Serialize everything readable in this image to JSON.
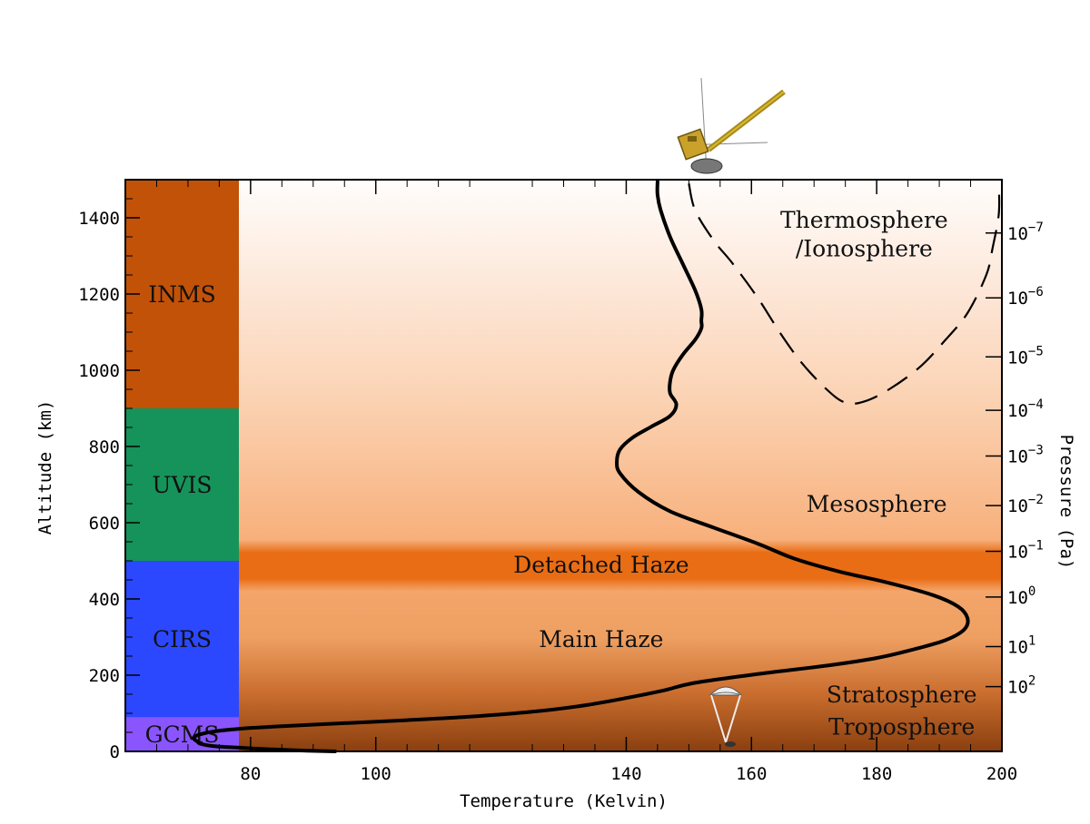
{
  "chart_data": {
    "type": "line",
    "xlabel": "Temperature (Kelvin)",
    "ylabel": "Altitude (km)",
    "y2label": "Pressure (Pa)",
    "xlim": [
      60,
      200
    ],
    "ylim": [
      0,
      1500
    ],
    "xticks": [
      80,
      100,
      140,
      160,
      180,
      200
    ],
    "yticks": [
      0,
      200,
      400,
      600,
      800,
      1000,
      1200,
      1400
    ],
    "pressure_ticks": [
      {
        "label": "10",
        "exp": "−7",
        "altitude": 1360
      },
      {
        "label": "10",
        "exp": "−6",
        "altitude": 1190
      },
      {
        "label": "10",
        "exp": "−5",
        "altitude": 1035
      },
      {
        "label": "10",
        "exp": "−4",
        "altitude": 895
      },
      {
        "label": "10",
        "exp": "−3",
        "altitude": 775
      },
      {
        "label": "10",
        "exp": "−2",
        "altitude": 645
      },
      {
        "label": "10",
        "exp": "−1",
        "altitude": 525
      },
      {
        "label": "10",
        "exp": "0",
        "altitude": 405
      },
      {
        "label": "10",
        "exp": "1",
        "altitude": 275
      },
      {
        "label": "10",
        "exp": "2",
        "altitude": 170
      }
    ],
    "instruments": [
      {
        "name": "GCMS",
        "from": 0,
        "to": 90,
        "color": "#8a55ff"
      },
      {
        "name": "CIRS",
        "from": 90,
        "to": 500,
        "color": "#2b48ff"
      },
      {
        "name": "UVIS",
        "from": 500,
        "to": 900,
        "color": "#16935a"
      },
      {
        "name": "INMS",
        "from": 900,
        "to": 1500,
        "color": "#c25208"
      }
    ],
    "regions": [
      {
        "name": "Thermosphere",
        "temperature": 178,
        "altitude": 1395
      },
      {
        "name": "/Ionosphere",
        "temperature": 178,
        "altitude": 1320
      },
      {
        "name": "Mesosphere",
        "temperature": 180,
        "altitude": 650
      },
      {
        "name": "Detached Haze",
        "temperature": 136,
        "altitude": 490
      },
      {
        "name": "Main Haze",
        "temperature": 136,
        "altitude": 295
      },
      {
        "name": "Stratosphere",
        "temperature": 184,
        "altitude": 150
      },
      {
        "name": "Troposphere",
        "temperature": 184,
        "altitude": 65
      }
    ],
    "series": [
      {
        "style": "solid",
        "points": [
          [
            93.5,
            0
          ],
          [
            89,
            2
          ],
          [
            84,
            5
          ],
          [
            79,
            9
          ],
          [
            74,
            14
          ],
          [
            72,
            20
          ],
          [
            71.5,
            26
          ],
          [
            71,
            32
          ],
          [
            71,
            38
          ],
          [
            72,
            45
          ],
          [
            74,
            52
          ],
          [
            78,
            59
          ],
          [
            85,
            66
          ],
          [
            95,
            74
          ],
          [
            105,
            82
          ],
          [
            115,
            91
          ],
          [
            125,
            104
          ],
          [
            133,
            120
          ],
          [
            140,
            140
          ],
          [
            146,
            160
          ],
          [
            151,
            180
          ],
          [
            162,
            205
          ],
          [
            172,
            225
          ],
          [
            180,
            245
          ],
          [
            186,
            268
          ],
          [
            191,
            292
          ],
          [
            194,
            320
          ],
          [
            194.5,
            350
          ],
          [
            193,
            380
          ],
          [
            189,
            410
          ],
          [
            182,
            442
          ],
          [
            174,
            472
          ],
          [
            167,
            505
          ],
          [
            161,
            545
          ],
          [
            154,
            587
          ],
          [
            147,
            630
          ],
          [
            142,
            680
          ],
          [
            139,
            730
          ],
          [
            138.5,
            760
          ],
          [
            139,
            792
          ],
          [
            141,
            823
          ],
          [
            144,
            852
          ],
          [
            147,
            880
          ],
          [
            148,
            910
          ],
          [
            147,
            940
          ],
          [
            147,
            970
          ],
          [
            147.5,
            1000
          ],
          [
            149,
            1040
          ],
          [
            151,
            1080
          ],
          [
            152,
            1110
          ],
          [
            152,
            1130
          ],
          [
            152,
            1160
          ],
          [
            151,
            1210
          ],
          [
            149,
            1280
          ],
          [
            147,
            1350
          ],
          [
            145.5,
            1420
          ],
          [
            145,
            1460
          ],
          [
            145,
            1495
          ]
        ]
      },
      {
        "style": "dashed",
        "points": [
          [
            150,
            1490
          ],
          [
            151,
            1420
          ],
          [
            154,
            1340
          ],
          [
            157,
            1280
          ],
          [
            161,
            1190
          ],
          [
            164.5,
            1100
          ],
          [
            168,
            1020
          ],
          [
            172,
            950
          ],
          [
            175,
            915
          ],
          [
            178,
            918
          ],
          [
            182,
            950
          ],
          [
            187,
            1010
          ],
          [
            191,
            1080
          ],
          [
            194.5,
            1150
          ],
          [
            197.5,
            1250
          ],
          [
            198.5,
            1320
          ],
          [
            199.5,
            1410
          ],
          [
            199.5,
            1490
          ]
        ]
      }
    ]
  }
}
